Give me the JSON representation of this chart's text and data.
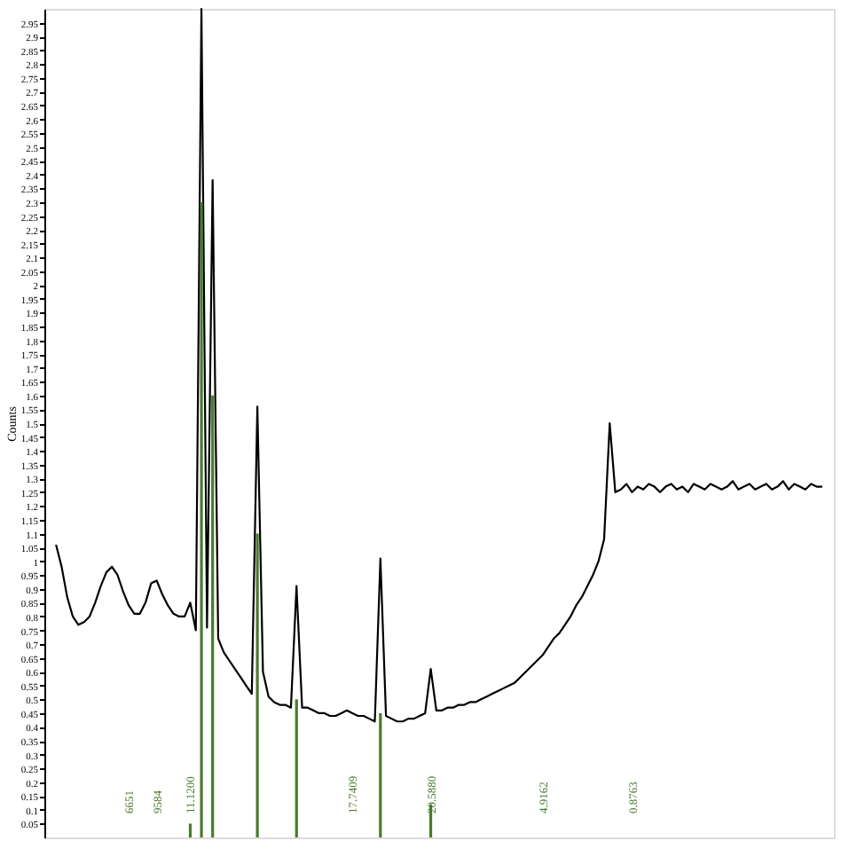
{
  "chart_data": {
    "type": "line",
    "ylabel": "Counts",
    "categories": [
      null,
      null,
      null,
      null,
      null,
      null,
      null,
      null,
      null,
      null,
      null,
      null,
      null,
      "6651",
      null,
      null,
      null,
      null,
      "9584",
      null,
      null,
      null,
      null,
      null,
      "11.1200",
      null,
      null,
      null,
      null,
      null,
      null,
      null,
      null,
      null,
      null,
      null,
      null,
      null,
      null,
      null,
      null,
      null,
      null,
      null,
      null,
      null,
      null,
      null,
      null,
      null,
      null,
      null,
      null,
      "17.7409",
      null,
      null,
      null,
      null,
      null,
      null,
      null,
      null,
      null,
      null,
      null,
      null,
      null,
      "20.5880",
      null,
      null,
      null,
      null,
      null,
      null,
      null,
      null,
      null,
      null,
      null,
      null,
      null,
      null,
      null,
      null,
      null,
      null,
      null,
      "4.9162",
      null,
      null,
      null,
      null,
      null,
      null,
      null,
      null,
      null,
      null,
      null,
      null,
      null,
      null,
      null,
      "0.8763",
      null,
      null,
      null,
      null,
      null,
      null,
      null,
      null,
      null,
      null,
      null,
      null,
      null,
      null,
      null,
      null,
      null,
      null,
      null,
      null,
      null,
      null,
      null,
      null,
      null,
      null,
      null,
      null,
      null,
      null,
      null,
      null,
      null,
      null
    ],
    "series": [
      {
        "color": "#000000",
        "values": [
          1.06,
          0.98,
          0.87,
          0.8,
          0.77,
          0.78,
          0.8,
          0.85,
          0.91,
          0.96,
          0.98,
          0.95,
          0.89,
          0.84,
          0.81,
          0.81,
          0.85,
          0.92,
          0.93,
          0.88,
          0.84,
          0.81,
          0.8,
          0.8,
          0.85,
          0.75,
          3.0,
          0.76,
          2.38,
          0.72,
          0.67,
          0.64,
          0.61,
          0.58,
          0.55,
          0.52,
          1.56,
          0.6,
          0.51,
          0.49,
          0.48,
          0.48,
          0.47,
          0.91,
          0.47,
          0.47,
          0.46,
          0.45,
          0.45,
          0.44,
          0.44,
          0.45,
          0.46,
          0.45,
          0.44,
          0.44,
          0.43,
          0.42,
          1.01,
          0.44,
          0.43,
          0.42,
          0.42,
          0.43,
          0.43,
          0.44,
          0.45,
          0.61,
          0.46,
          0.46,
          0.47,
          0.47,
          0.48,
          0.48,
          0.49,
          0.49,
          0.5,
          0.51,
          0.52,
          0.53,
          0.54,
          0.55,
          0.56,
          0.58,
          0.6,
          0.62,
          0.64,
          0.66,
          0.69,
          0.72,
          0.74,
          0.77,
          0.8,
          0.84,
          0.87,
          0.91,
          0.95,
          1.0,
          1.08,
          1.5,
          1.25,
          1.26,
          1.28,
          1.25,
          1.27,
          1.26,
          1.28,
          1.27,
          1.25,
          1.27,
          1.28,
          1.26,
          1.27,
          1.25,
          1.28,
          1.27,
          1.26,
          1.28,
          1.27,
          1.26,
          1.27,
          1.29,
          1.26,
          1.27,
          1.28,
          1.26,
          1.27,
          1.28,
          1.26,
          1.27,
          1.29,
          1.26,
          1.28,
          1.27,
          1.26,
          1.28,
          1.27,
          1.27
        ]
      },
      {
        "type": "bar",
        "color": "#4a7a2e",
        "values": [
          null,
          null,
          null,
          null,
          null,
          null,
          null,
          null,
          null,
          null,
          null,
          null,
          null,
          null,
          null,
          null,
          null,
          null,
          null,
          null,
          null,
          null,
          null,
          null,
          0.05,
          null,
          2.3,
          null,
          1.6,
          null,
          null,
          null,
          null,
          null,
          null,
          null,
          1.1,
          null,
          null,
          null,
          null,
          null,
          null,
          0.5,
          null,
          null,
          null,
          null,
          null,
          null,
          null,
          null,
          null,
          null,
          null,
          null,
          null,
          null,
          0.45,
          null,
          null,
          null,
          null,
          null,
          null,
          null,
          null,
          0.12,
          null,
          null,
          null,
          null,
          null,
          null,
          null,
          null,
          null,
          null,
          null,
          null,
          null,
          null,
          null,
          null,
          null,
          null,
          null,
          null,
          null,
          null,
          null,
          null,
          null,
          null,
          null,
          null,
          null,
          null,
          null,
          null,
          null,
          null,
          null,
          null,
          null,
          null,
          null,
          null,
          null,
          null,
          null,
          null,
          null,
          null,
          null,
          null,
          null,
          null,
          null,
          null,
          null,
          null,
          null,
          null,
          null,
          null,
          null,
          null,
          null,
          null,
          null,
          null,
          null,
          null,
          null,
          null,
          null,
          null
        ]
      }
    ],
    "ylim": [
      0,
      3.0
    ],
    "yticks": [
      0.05,
      0.1,
      0.15,
      0.2,
      0.25,
      0.3,
      0.35,
      0.4,
      0.45,
      0.5,
      0.55,
      0.6,
      0.65,
      0.7,
      0.75,
      0.8,
      0.85,
      0.9,
      0.95,
      1,
      1.05,
      1.1,
      1.15,
      1.2,
      1.25,
      1.3,
      1.35,
      1.4,
      1.45,
      1.5,
      1.55,
      1.6,
      1.65,
      1.7,
      1.75,
      1.8,
      1.85,
      1.9,
      1.95,
      2,
      2.05,
      2.1,
      2.15,
      2.2,
      2.25,
      2.3,
      2.35,
      2.4,
      2.45,
      2.5,
      2.55,
      2.6,
      2.65,
      2.7,
      2.75,
      2.8,
      2.85,
      2.9,
      2.95
    ],
    "grid": false
  }
}
